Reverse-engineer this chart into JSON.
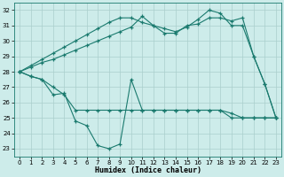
{
  "x": [
    0,
    1,
    2,
    3,
    4,
    5,
    6,
    7,
    8,
    9,
    10,
    11,
    12,
    13,
    14,
    15,
    16,
    17,
    18,
    19,
    20,
    21,
    22,
    23
  ],
  "series_upper1": [
    28.0,
    28.4,
    28.8,
    29.2,
    29.6,
    30.0,
    30.4,
    30.8,
    31.2,
    31.5,
    31.5,
    31.2,
    31.0,
    30.8,
    30.6,
    30.9,
    31.4,
    32.0,
    31.8,
    31.0,
    31.0,
    29.0,
    27.2,
    25.0
  ],
  "series_upper2": [
    28.0,
    28.3,
    28.6,
    28.8,
    29.1,
    29.4,
    29.7,
    30.0,
    30.3,
    30.6,
    30.9,
    31.6,
    31.0,
    30.5,
    30.5,
    31.0,
    31.1,
    31.5,
    31.5,
    31.3,
    31.5,
    29.0,
    27.2,
    25.0
  ],
  "series_lower1": [
    28.0,
    27.7,
    27.5,
    27.0,
    26.5,
    25.5,
    25.5,
    25.5,
    25.5,
    25.5,
    25.5,
    25.5,
    25.5,
    25.5,
    25.5,
    25.5,
    25.5,
    25.5,
    25.5,
    25.3,
    25.0,
    25.0,
    25.0,
    25.0
  ],
  "series_lower2": [
    28.0,
    27.7,
    27.5,
    26.5,
    26.6,
    24.8,
    24.5,
    23.2,
    23.0,
    23.3,
    27.5,
    25.5,
    25.5,
    25.5,
    25.5,
    25.5,
    25.5,
    25.5,
    25.5,
    25.0,
    25.0,
    25.0,
    25.0,
    25.0
  ],
  "line_color": "#1a7a6e",
  "bg_color": "#cdecea",
  "grid_color": "#aacfcc",
  "xlabel": "Humidex (Indice chaleur)",
  "ylim": [
    22.5,
    32.5
  ],
  "xlim": [
    -0.5,
    23.5
  ],
  "yticks": [
    23,
    24,
    25,
    26,
    27,
    28,
    29,
    30,
    31,
    32
  ],
  "xticks": [
    0,
    1,
    2,
    3,
    4,
    5,
    6,
    7,
    8,
    9,
    10,
    11,
    12,
    13,
    14,
    15,
    16,
    17,
    18,
    19,
    20,
    21,
    22,
    23
  ]
}
